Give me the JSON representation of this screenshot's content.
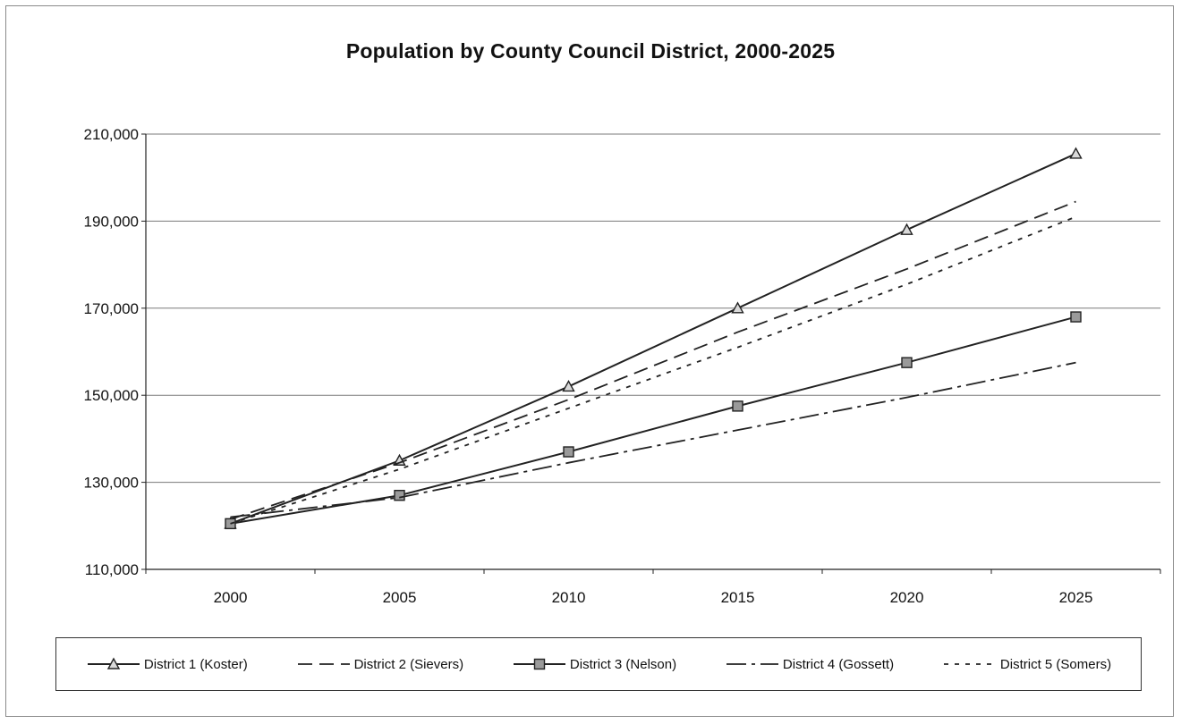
{
  "chart_data": {
    "type": "line",
    "title": "Population by County Council District, 2000-2025",
    "xlabel": "",
    "ylabel": "",
    "categories": [
      "2000",
      "2005",
      "2010",
      "2015",
      "2020",
      "2025"
    ],
    "ylim": [
      110000,
      210000
    ],
    "y_ticks": [
      "110,000",
      "130,000",
      "150,000",
      "170,000",
      "190,000",
      "210,000"
    ],
    "y_tick_values": [
      110000,
      130000,
      150000,
      170000,
      190000,
      210000
    ],
    "grid": "horizontal",
    "legend_position": "bottom",
    "series": [
      {
        "name": "District 1 (Koster)",
        "values": [
          120500,
          135000,
          152000,
          170000,
          188000,
          205500
        ],
        "marker": "triangle",
        "dash": "solid",
        "color": "#222222"
      },
      {
        "name": "District 2 (Sievers)",
        "values": [
          121500,
          134500,
          149000,
          164500,
          179000,
          194500
        ],
        "marker": "none",
        "dash": "long-dash",
        "color": "#222222"
      },
      {
        "name": "District 3 (Nelson)",
        "values": [
          120500,
          127000,
          137000,
          147500,
          157500,
          168000
        ],
        "marker": "square",
        "dash": "solid",
        "color": "#222222"
      },
      {
        "name": "District 4 (Gossett)",
        "values": [
          122000,
          126500,
          134500,
          142000,
          149500,
          157500
        ],
        "marker": "none",
        "dash": "dash-dot",
        "color": "#222222"
      },
      {
        "name": "District 5 (Somers)",
        "values": [
          120500,
          133000,
          147000,
          161000,
          175500,
          191000
        ],
        "marker": "none",
        "dash": "short-dash",
        "color": "#222222"
      }
    ]
  }
}
